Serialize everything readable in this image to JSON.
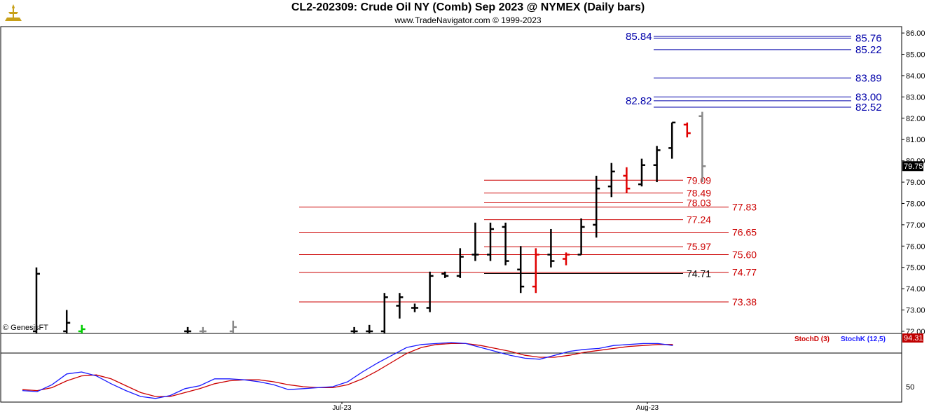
{
  "header": {
    "title": "CL2-202309:  Crude Oil NY (Comb) Sep 2023 @ NYMEX  (Daily bars)",
    "subtitle": "www.TradeNavigator.com © 1999-2023",
    "credit": "© GenesisFT"
  },
  "colors": {
    "up_bar": "#000000",
    "down_bar": "#e00000",
    "current_bar": "#888888",
    "green_mark": "#00cc00",
    "support_line": "#cc0000",
    "resistance_line": "#0000aa",
    "stoch_d": "#cc0000",
    "stoch_k": "#1a1aff"
  },
  "chart_data": {
    "type": "bar",
    "subtype": "ohlc",
    "title": "CL2-202309:  Crude Oil NY (Comb) Sep 2023 @ NYMEX  (Daily bars)",
    "y_axis": {
      "range": [
        71.9,
        86.3
      ],
      "ticks": [
        "86.00",
        "85.00",
        "84.00",
        "83.00",
        "82.00",
        "81.00",
        "80.00",
        "79.00",
        "78.00",
        "77.00",
        "76.00",
        "75.00",
        "74.00",
        "73.00",
        "72.00"
      ],
      "last_price_label": "79.75",
      "last_price": 79.75
    },
    "x_axis": {
      "labels": [
        "Jul-23",
        "Aug-23"
      ],
      "label_at_bar": [
        20,
        40
      ]
    },
    "bars": [
      {
        "i": 0,
        "o": 72.0,
        "h": 75.0,
        "l": 71.9,
        "c": 74.7,
        "t": "u"
      },
      {
        "i": 2,
        "o": 72.0,
        "h": 73.0,
        "l": 71.9,
        "c": 72.4,
        "t": "u"
      },
      {
        "i": 3,
        "o": 72.0,
        "h": 72.3,
        "l": 71.9,
        "c": 72.1,
        "t": "g"
      },
      {
        "i": 10,
        "o": 72.0,
        "h": 72.2,
        "l": 71.9,
        "c": 72.0,
        "t": "u"
      },
      {
        "i": 11,
        "o": 72.0,
        "h": 72.2,
        "l": 71.9,
        "c": 72.0,
        "t": "c"
      },
      {
        "i": 13,
        "o": 72.0,
        "h": 72.5,
        "l": 71.9,
        "c": 72.2,
        "t": "c"
      },
      {
        "i": 21,
        "o": 72.0,
        "h": 72.2,
        "l": 71.9,
        "c": 72.0,
        "t": "u"
      },
      {
        "i": 22,
        "o": 72.0,
        "h": 72.3,
        "l": 71.9,
        "c": 72.0,
        "t": "u"
      },
      {
        "i": 23,
        "o": 72.0,
        "h": 73.8,
        "l": 71.9,
        "c": 73.6,
        "t": "u"
      },
      {
        "i": 24,
        "o": 73.2,
        "h": 73.8,
        "l": 72.6,
        "c": 73.6,
        "t": "u"
      },
      {
        "i": 25,
        "o": 73.1,
        "h": 73.3,
        "l": 72.9,
        "c": 73.1,
        "t": "u"
      },
      {
        "i": 26,
        "o": 73.1,
        "h": 74.8,
        "l": 72.9,
        "c": 74.6,
        "t": "u"
      },
      {
        "i": 27,
        "o": 74.7,
        "h": 74.8,
        "l": 74.5,
        "c": 74.6,
        "t": "u"
      },
      {
        "i": 28,
        "o": 74.6,
        "h": 75.9,
        "l": 74.5,
        "c": 75.5,
        "t": "u"
      },
      {
        "i": 29,
        "o": 75.6,
        "h": 77.1,
        "l": 75.3,
        "c": 75.6,
        "t": "u"
      },
      {
        "i": 30,
        "o": 75.6,
        "h": 77.1,
        "l": 75.3,
        "c": 76.8,
        "t": "u"
      },
      {
        "i": 31,
        "o": 76.9,
        "h": 77.1,
        "l": 75.1,
        "c": 75.3,
        "t": "u"
      },
      {
        "i": 32,
        "o": 74.9,
        "h": 76.0,
        "l": 73.8,
        "c": 74.1,
        "t": "u"
      },
      {
        "i": 33,
        "o": 74.1,
        "h": 75.9,
        "l": 73.8,
        "c": 75.6,
        "t": "d"
      },
      {
        "i": 34,
        "o": 75.6,
        "h": 76.8,
        "l": 75.0,
        "c": 75.3,
        "t": "u"
      },
      {
        "i": 35,
        "o": 75.4,
        "h": 75.7,
        "l": 75.1,
        "c": 75.6,
        "t": "d"
      },
      {
        "i": 36,
        "o": 75.6,
        "h": 77.3,
        "l": 75.6,
        "c": 76.9,
        "t": "u"
      },
      {
        "i": 37,
        "o": 77.0,
        "h": 79.3,
        "l": 76.4,
        "c": 78.7,
        "t": "u"
      },
      {
        "i": 38,
        "o": 78.8,
        "h": 79.9,
        "l": 78.3,
        "c": 79.5,
        "t": "u"
      },
      {
        "i": 39,
        "o": 79.3,
        "h": 79.7,
        "l": 78.5,
        "c": 78.7,
        "t": "d"
      },
      {
        "i": 40,
        "o": 78.9,
        "h": 80.1,
        "l": 78.8,
        "c": 79.8,
        "t": "u"
      },
      {
        "i": 41,
        "o": 79.8,
        "h": 80.7,
        "l": 79.0,
        "c": 80.5,
        "t": "u"
      },
      {
        "i": 42,
        "o": 80.6,
        "h": 81.8,
        "l": 80.1,
        "c": 81.8,
        "t": "u"
      },
      {
        "i": 43,
        "o": 81.7,
        "h": 81.8,
        "l": 81.1,
        "c": 81.3,
        "t": "d"
      },
      {
        "i": 44,
        "o": 82.1,
        "h": 82.3,
        "l": 79.0,
        "c": 79.75,
        "t": "c"
      }
    ],
    "support_levels": [
      {
        "value": 79.09,
        "label": "79.09",
        "start_bar": 32,
        "label_side": "inner"
      },
      {
        "value": 78.49,
        "label": "78.49",
        "start_bar": 32,
        "label_side": "inner"
      },
      {
        "value": 78.03,
        "label": "78.03",
        "start_bar": 32,
        "label_side": "inner"
      },
      {
        "value": 77.83,
        "label": "77.83",
        "start_bar": 20,
        "label_side": "outer"
      },
      {
        "value": 77.24,
        "label": "77.24",
        "start_bar": 32,
        "label_side": "inner"
      },
      {
        "value": 76.65,
        "label": "76.65",
        "start_bar": 20,
        "label_side": "outer"
      },
      {
        "value": 75.97,
        "label": "75.97",
        "start_bar": 32,
        "label_side": "inner"
      },
      {
        "value": 75.6,
        "label": "75.60",
        "start_bar": 20,
        "label_side": "outer"
      },
      {
        "value": 74.77,
        "label": "74.77",
        "start_bar": 20,
        "label_side": "outer"
      },
      {
        "value": 74.71,
        "label": "74.71",
        "start_bar": 32,
        "label_side": "inner",
        "black": true
      },
      {
        "value": 73.38,
        "label": "73.38",
        "start_bar": 20,
        "label_side": "outer"
      }
    ],
    "resistance_levels": [
      {
        "value": 85.84,
        "label": "85.84",
        "label_side": "left"
      },
      {
        "value": 85.76,
        "label": "85.76",
        "label_side": "right"
      },
      {
        "value": 85.22,
        "label": "85.22",
        "label_side": "right"
      },
      {
        "value": 83.89,
        "label": "83.89",
        "label_side": "right"
      },
      {
        "value": 83.0,
        "label": "83.00",
        "label_side": "right"
      },
      {
        "value": 82.82,
        "label": "82.82",
        "label_side": "left"
      },
      {
        "value": 82.52,
        "label": "82.52",
        "label_side": "right"
      }
    ],
    "stochastic": {
      "legend": [
        {
          "name": "StochD (3)",
          "series": "d"
        },
        {
          "name": "StochK (12,5)",
          "series": "k"
        }
      ],
      "axis_label": "50",
      "last_value": "94.31",
      "x": [
        0,
        1,
        2,
        3,
        4,
        5,
        6,
        7,
        8,
        9,
        10,
        11,
        12,
        13,
        14,
        15,
        16,
        17,
        18,
        19,
        20,
        21,
        22,
        23,
        24,
        25,
        26,
        27,
        28,
        29,
        30,
        31,
        32,
        33,
        34,
        35,
        36,
        37,
        38,
        39,
        40,
        41,
        42,
        43,
        44
      ],
      "k": [
        46,
        45,
        52,
        63,
        65,
        61,
        53,
        46,
        40,
        38,
        41,
        48,
        51,
        58,
        58,
        57,
        55,
        52,
        47,
        48,
        49,
        50,
        55,
        65,
        74,
        82,
        90,
        93,
        94,
        95,
        94,
        90,
        86,
        82,
        79,
        78,
        82,
        86,
        88,
        89,
        92,
        93,
        94,
        94,
        92
      ],
      "d": [
        47,
        46,
        49,
        56,
        61,
        62,
        58,
        51,
        44,
        40,
        40,
        44,
        48,
        53,
        56,
        57,
        57,
        55,
        52,
        50,
        49,
        49,
        52,
        58,
        66,
        75,
        84,
        90,
        93,
        94,
        94,
        92,
        89,
        86,
        82,
        80,
        80,
        82,
        85,
        87,
        89,
        91,
        92,
        93,
        93
      ]
    }
  }
}
